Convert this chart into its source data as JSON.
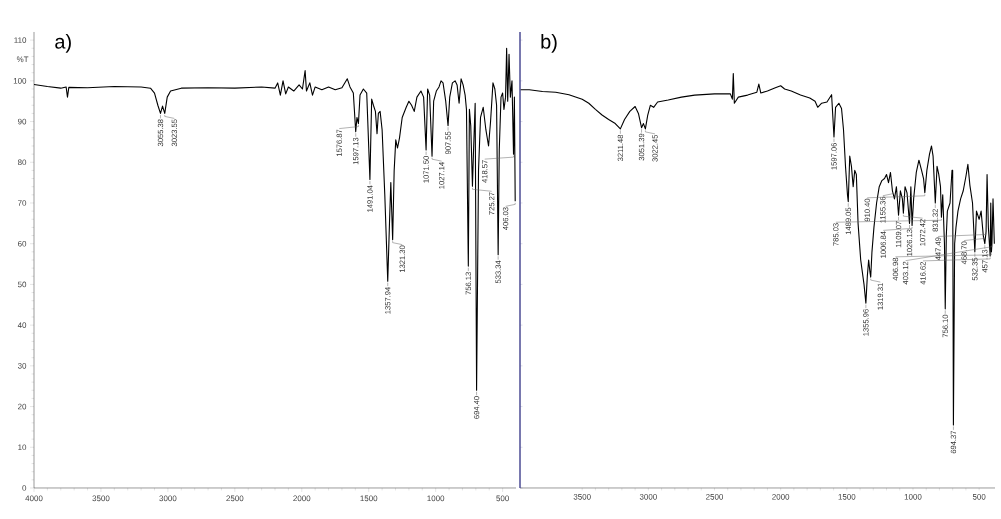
{
  "chart_data": [
    {
      "type": "line",
      "title": "a)",
      "ylabel": "%T",
      "xlim": [
        4000,
        400
      ],
      "ylim": [
        0,
        112
      ],
      "xticks": [
        4000,
        3500,
        3000,
        2500,
        2000,
        1500,
        1000,
        500
      ],
      "yticks": [
        0,
        10,
        20,
        30,
        40,
        50,
        60,
        70,
        80,
        90,
        100,
        110
      ],
      "series": [
        {
          "color": "#000000",
          "x": [
            4000,
            3900,
            3800,
            3760,
            3750,
            3740,
            3600,
            3400,
            3200,
            3130,
            3100,
            3075,
            3055.38,
            3040,
            3023.55,
            3005,
            2980,
            2900,
            2700,
            2500,
            2300,
            2200,
            2180,
            2160,
            2140,
            2120,
            2100,
            2060,
            2020,
            1995,
            1975,
            1965,
            1940,
            1920,
            1900,
            1850,
            1800,
            1750,
            1700,
            1660,
            1640,
            1615,
            1597.13,
            1588,
            1576.87,
            1565,
            1540,
            1515,
            1491.04,
            1478,
            1465,
            1450,
            1438,
            1428,
            1415,
            1400,
            1380,
            1357.94,
            1345,
            1335,
            1321.3,
            1310,
            1298,
            1285,
            1270,
            1250,
            1220,
            1200,
            1180,
            1160,
            1140,
            1110,
            1090,
            1071.5,
            1060,
            1045,
            1027.14,
            1015,
            995,
            975,
            960,
            945,
            925,
            907.55,
            895,
            875,
            855,
            840,
            825,
            810,
            795,
            780,
            770,
            756.13,
            748,
            738,
            725.27,
            718,
            705,
            694.4,
            680,
            665,
            645,
            625,
            605,
            590,
            572,
            558,
            545,
            533.34,
            525,
            512,
            500,
            490,
            478,
            470,
            462,
            452,
            442,
            430,
            418.57,
            412,
            406.03
          ],
          "values": [
            99.1,
            98.6,
            98.2,
            98.5,
            96.0,
            98.4,
            98.3,
            98.6,
            98.5,
            98.2,
            97,
            94,
            92.0,
            93.8,
            92.0,
            96,
            97.5,
            98.2,
            98.3,
            98.2,
            98.5,
            98.2,
            99.5,
            96.5,
            100,
            96.8,
            98.5,
            97.5,
            99,
            98,
            102.5,
            97.5,
            99.5,
            96.5,
            98.5,
            97.8,
            98.5,
            97.8,
            98.3,
            100.5,
            98.5,
            97,
            87.5,
            91,
            89.5,
            96.5,
            98,
            97,
            75.8,
            95.5,
            94,
            92.5,
            87,
            92,
            92.5,
            88,
            72,
            50.8,
            65,
            75,
            61,
            78,
            85.5,
            83.5,
            86,
            91,
            93.5,
            95,
            94,
            92.5,
            96,
            97.5,
            96,
            83,
            98,
            96.5,
            81.5,
            95,
            97.5,
            98.5,
            100,
            99.5,
            95,
            89,
            96,
            99.5,
            100,
            99,
            94.5,
            100.5,
            99,
            96.5,
            93,
            54.5,
            93,
            89,
            74.1,
            82,
            94.5,
            24,
            78,
            91,
            93.5,
            88,
            84,
            90,
            99.5,
            98,
            94,
            57.3,
            83,
            96,
            97,
            93,
            96,
            108,
            95,
            106.5,
            96,
            100,
            82,
            96,
            70.4
          ]
        }
      ],
      "annotations": [
        {
          "text": "3055.38",
          "x": 3055.38,
          "y": 92.0
        },
        {
          "text": "3023.55",
          "x": 3023.55,
          "y": 92.0
        },
        {
          "text": "1597.13",
          "x": 1597.13,
          "y": 87.5
        },
        {
          "text": "1576.87",
          "x": 1576.87,
          "y": 89.5
        },
        {
          "text": "1491.04",
          "x": 1491.04,
          "y": 75.8
        },
        {
          "text": "1357.94",
          "x": 1357.94,
          "y": 50.8
        },
        {
          "text": "1321.30",
          "x": 1321.3,
          "y": 61
        },
        {
          "text": "1071.50",
          "x": 1071.5,
          "y": 83
        },
        {
          "text": "1027.14",
          "x": 1027.14,
          "y": 81.5
        },
        {
          "text": "907.55",
          "x": 907.55,
          "y": 89
        },
        {
          "text": "756.13",
          "x": 756.13,
          "y": 54.5
        },
        {
          "text": "725.27",
          "x": 725.27,
          "y": 74.1
        },
        {
          "text": "694.40",
          "x": 694.4,
          "y": 24
        },
        {
          "text": "533.34",
          "x": 533.34,
          "y": 57.3
        },
        {
          "text": "418.57",
          "x": 418.57,
          "y": 82
        },
        {
          "text": "406.03",
          "x": 406.03,
          "y": 70.4
        }
      ]
    },
    {
      "type": "line",
      "title": "b)",
      "xlim": [
        3970,
        380
      ],
      "ylim": [
        0,
        112
      ],
      "yticks": [
        0,
        10,
        20,
        30,
        40,
        50,
        60,
        70,
        80,
        90,
        100,
        110
      ],
      "xticks": [
        3500,
        3000,
        2500,
        2000,
        1500,
        1000,
        500
      ],
      "tick_labels": "x",
      "series": [
        {
          "color": "#000000",
          "x": [
            3965,
            3900,
            3800,
            3700,
            3600,
            3500,
            3450,
            3400,
            3350,
            3300,
            3250,
            3211.48,
            3180,
            3140,
            3100,
            3075,
            3051.39,
            3037,
            3022.45,
            3005,
            2985,
            2960,
            2930,
            2850,
            2750,
            2650,
            2500,
            2380,
            2365,
            2358,
            2350,
            2320,
            2250,
            2180,
            2165,
            2150,
            2100,
            2040,
            2000,
            1970,
            1920,
            1850,
            1780,
            1740,
            1720,
            1690,
            1650,
            1615,
            1597.06,
            1585,
            1560,
            1540,
            1525,
            1510,
            1495,
            1489.05,
            1478,
            1465,
            1452,
            1440,
            1428,
            1415,
            1395,
            1370,
            1355.96,
            1345,
            1335,
            1325,
            1319.31,
            1310,
            1295,
            1275,
            1255,
            1235,
            1215,
            1200,
            1185,
            1170,
            1155.36,
            1140,
            1125,
            1109.07,
            1095,
            1080,
            1072.42,
            1060,
            1045,
            1026.13,
            1016,
            1006.84,
            995,
            975,
            955,
            935,
            920,
            910.4,
            895,
            875,
            860,
            848,
            831.32,
            818,
            805,
            792,
            785.03,
            775,
            762,
            756.1,
            748,
            740,
            720,
            705,
            700,
            694.37,
            685,
            675,
            660,
            640,
            620,
            600,
            585,
            570,
            550,
            532.35,
            520,
            500,
            485,
            468.7,
            457.13,
            447.49,
            440,
            430,
            416.62,
            412,
            406.98,
            403.12,
            395,
            385
          ],
          "values": [
            97.8,
            97.8,
            97.4,
            97.2,
            96.6,
            95.5,
            94.5,
            93,
            91.6,
            90.5,
            89.5,
            88.2,
            90.5,
            92.5,
            93.7,
            92,
            88.5,
            89.5,
            88.2,
            91.5,
            94,
            93.5,
            94.8,
            95.3,
            96,
            96.5,
            96.8,
            96.8,
            95.5,
            101.8,
            94.5,
            96,
            96.5,
            97.2,
            99.2,
            97,
            97.5,
            98.3,
            98.8,
            98,
            97.5,
            96.5,
            95.8,
            95,
            93.5,
            94.5,
            94.8,
            96.6,
            86.2,
            93.5,
            94.5,
            93.2,
            88,
            79,
            72,
            70.3,
            81.5,
            79,
            74,
            78,
            77,
            65,
            56,
            50,
            45.4,
            52,
            56,
            53,
            51.8,
            58,
            64,
            70,
            74,
            75.5,
            76,
            77,
            75,
            77.5,
            73,
            71,
            74,
            67,
            73,
            71,
            67.5,
            74,
            72.5,
            65,
            74,
            64.5,
            71,
            77.5,
            80.5,
            78,
            76,
            72.5,
            78,
            82,
            84,
            81.5,
            70,
            79,
            77,
            74,
            66.5,
            72,
            60,
            44,
            62,
            68,
            70,
            78,
            78,
            15.5,
            60,
            64,
            68,
            71,
            73,
            76.5,
            79.5,
            74.4,
            70,
            58,
            68,
            66,
            68,
            62,
            60,
            63,
            77,
            64,
            57,
            70,
            58,
            60,
            71,
            60
          ]
        }
      ],
      "annotations": [
        {
          "text": "3211.48",
          "x": 3211.48,
          "y": 88.2
        },
        {
          "text": "3051.39",
          "x": 3051.39,
          "y": 88.5
        },
        {
          "text": "3022.45",
          "x": 3022.45,
          "y": 88.2
        },
        {
          "text": "1597.06",
          "x": 1597.06,
          "y": 86.2
        },
        {
          "text": "1489.05",
          "x": 1489.05,
          "y": 70.3
        },
        {
          "text": "1355.96",
          "x": 1355.96,
          "y": 45.4
        },
        {
          "text": "1319.31",
          "x": 1319.31,
          "y": 51.8
        },
        {
          "text": "1155.36",
          "x": 1155.36,
          "y": 73
        },
        {
          "text": "1109.07",
          "x": 1109.07,
          "y": 67
        },
        {
          "text": "1072.42",
          "x": 1072.42,
          "y": 67.5
        },
        {
          "text": "1026.13",
          "x": 1026.13,
          "y": 65
        },
        {
          "text": "1006.84",
          "x": 1006.84,
          "y": 64.5
        },
        {
          "text": "910.40",
          "x": 910.4,
          "y": 72.5
        },
        {
          "text": "831.32",
          "x": 831.32,
          "y": 70
        },
        {
          "text": "785.03",
          "x": 785.03,
          "y": 66.5
        },
        {
          "text": "756.10",
          "x": 756.1,
          "y": 44
        },
        {
          "text": "694.37",
          "x": 694.37,
          "y": 15.5
        },
        {
          "text": "532.35",
          "x": 532.35,
          "y": 58
        },
        {
          "text": "468.70",
          "x": 468.7,
          "y": 62
        },
        {
          "text": "457.13",
          "x": 457.13,
          "y": 60
        },
        {
          "text": "447.49",
          "x": 447.49,
          "y": 63
        },
        {
          "text": "416.62",
          "x": 416.62,
          "y": 57
        },
        {
          "text": "406.98",
          "x": 406.98,
          "y": 58
        },
        {
          "text": "403.12",
          "x": 403.12,
          "y": 60
        }
      ]
    }
  ]
}
